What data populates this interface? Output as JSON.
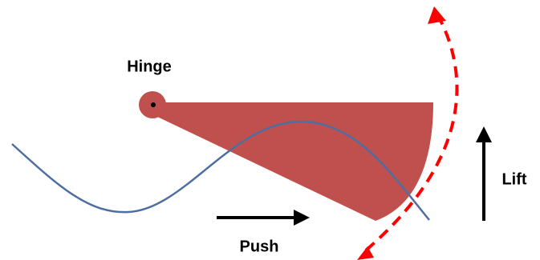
{
  "labels": {
    "hinge": "Hinge",
    "push": "Push",
    "lift": "Lift"
  }
}
